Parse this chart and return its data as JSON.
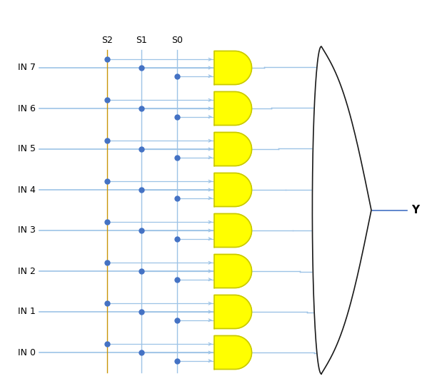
{
  "inputs": [
    "IN 0",
    "IN 1",
    "IN 2",
    "IN 3",
    "IN 4",
    "IN 5",
    "IN 6",
    "IN 7"
  ],
  "selects": [
    "S2",
    "S1",
    "S0"
  ],
  "output_label": "Y",
  "bg_color": "#ffffff",
  "blue": "#4472c4",
  "light_blue": "#9dc3e6",
  "orange": "#c8960a",
  "yellow": "#ffff00",
  "yellow_edge": "#c8c800",
  "dot_color": "#4472c4",
  "black": "#1a1a1a",
  "fig_w": 6.05,
  "fig_h": 5.41,
  "dpi": 100
}
